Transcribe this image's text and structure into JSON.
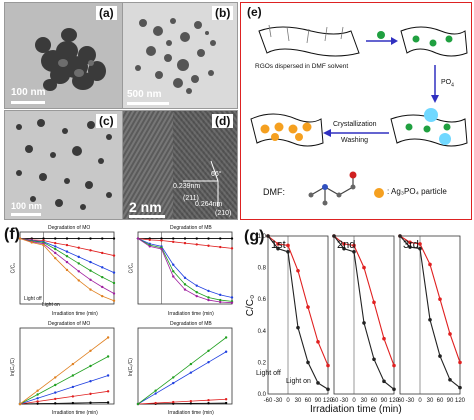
{
  "panels": {
    "a": {
      "label": "(a)",
      "scale": "100 nm"
    },
    "b": {
      "label": "(b)",
      "scale": "500 nm"
    },
    "c": {
      "label": "(c)",
      "scale": "100 nm"
    },
    "d": {
      "label": "(d)",
      "scale": "2 nm",
      "annotations": {
        "d1": "0.239nm",
        "angle": "66°",
        "d2": "0.264nm",
        "hkl1": "(211)",
        "hkl2": "(210)"
      }
    },
    "e": {
      "label": "(e)",
      "text_rgo": "RGOs dispersed in DMF solvent",
      "text_cryst": "Crystallization",
      "text_wash": "Washing",
      "text_dmf": "DMF:",
      "text_particle": ": Ag₃PO₄ particle",
      "po4": "PO",
      "po4_sup": "4"
    },
    "f": {
      "label": "(f)",
      "sub1": {
        "title": "Degradation of MO",
        "ylabel": "C/C₀",
        "xlabel": "Irradiation time (min)",
        "light_off": "Light off",
        "light_on": "Light on"
      },
      "sub2": {
        "title": "Degradation of MB",
        "ylabel": "C/C₀",
        "xlabel": "Irradiation time (min)"
      },
      "sub3": {
        "title": "Degradation of MO",
        "ylabel": "ln(C₀/C)",
        "xlabel": "Irradiation time (min)"
      },
      "sub4": {
        "title": "Degradation of MB",
        "ylabel": "ln(C₀/C)",
        "xlabel": "Irradiation time (min)"
      }
    },
    "g": {
      "label": "(g)",
      "ylabel": "C/C₀",
      "xlabel": "Irradiation time (min)",
      "light_off": "Light off",
      "light_on": "Light on"
    }
  },
  "chart_data": [
    {
      "type": "line",
      "panel": "g-1st",
      "title": "1st",
      "x": [
        -60,
        -30,
        0,
        30,
        60,
        90,
        120
      ],
      "xlim": [
        -60,
        120
      ],
      "ylim": [
        0,
        1
      ],
      "xticks": [
        "-60",
        "-30",
        "0",
        "30",
        "60",
        "90",
        "120"
      ],
      "yticks": [
        "0.0",
        "0.2",
        "0.4",
        "0.6",
        "0.8",
        "1.0"
      ],
      "series": [
        {
          "color": "#e02020",
          "values": [
            1.0,
            0.95,
            0.94,
            0.78,
            0.55,
            0.33,
            0.18
          ]
        },
        {
          "color": "#222222",
          "values": [
            1.0,
            0.92,
            0.9,
            0.42,
            0.2,
            0.07,
            0.03
          ]
        }
      ]
    },
    {
      "type": "line",
      "panel": "g-2nd",
      "title": "2nd",
      "x": [
        -60,
        -30,
        0,
        30,
        60,
        90,
        120
      ],
      "xlim": [
        -60,
        120
      ],
      "ylim": [
        0,
        1
      ],
      "xticks": [
        "-60",
        "-30",
        "0",
        "30",
        "60",
        "90",
        "120"
      ],
      "series": [
        {
          "color": "#e02020",
          "values": [
            1.0,
            0.95,
            0.94,
            0.8,
            0.58,
            0.35,
            0.18
          ]
        },
        {
          "color": "#222222",
          "values": [
            1.0,
            0.92,
            0.9,
            0.45,
            0.22,
            0.08,
            0.03
          ]
        }
      ]
    },
    {
      "type": "line",
      "panel": "g-3rd",
      "title": "3rd",
      "x": [
        -60,
        -30,
        0,
        30,
        60,
        90,
        120
      ],
      "xlim": [
        -60,
        120
      ],
      "ylim": [
        0,
        1
      ],
      "xticks": [
        "-60",
        "-30",
        "0",
        "30",
        "60",
        "90",
        "120"
      ],
      "series": [
        {
          "color": "#e02020",
          "values": [
            1.0,
            0.96,
            0.95,
            0.82,
            0.6,
            0.38,
            0.2
          ]
        },
        {
          "color": "#222222",
          "values": [
            1.0,
            0.93,
            0.92,
            0.47,
            0.24,
            0.09,
            0.04
          ]
        }
      ]
    },
    {
      "type": "line",
      "panel": "f-1",
      "x": [
        -60,
        -30,
        0,
        30,
        60,
        90,
        120,
        150,
        180
      ],
      "xlim": [
        -60,
        180
      ],
      "ylim": [
        0,
        1.1
      ],
      "series": [
        {
          "color": "#000000",
          "values": [
            1.0,
            1.0,
            1.0,
            1.0,
            1.0,
            1.0,
            1.0,
            1.0,
            1.0
          ]
        },
        {
          "color": "#e02020",
          "values": [
            1.0,
            0.98,
            0.97,
            0.93,
            0.9,
            0.86,
            0.82,
            0.78,
            0.74
          ]
        },
        {
          "color": "#2040e0",
          "values": [
            1.0,
            0.97,
            0.95,
            0.88,
            0.8,
            0.72,
            0.64,
            0.56,
            0.48
          ]
        },
        {
          "color": "#20a020",
          "values": [
            1.0,
            0.96,
            0.94,
            0.84,
            0.73,
            0.62,
            0.51,
            0.41,
            0.32
          ]
        },
        {
          "color": "#a020a0",
          "values": [
            1.0,
            0.95,
            0.92,
            0.78,
            0.64,
            0.5,
            0.37,
            0.26,
            0.16
          ]
        },
        {
          "color": "#e08020",
          "values": [
            1.0,
            0.94,
            0.9,
            0.7,
            0.52,
            0.36,
            0.22,
            0.12,
            0.05
          ]
        }
      ]
    },
    {
      "type": "line",
      "panel": "f-2",
      "x": [
        -60,
        -30,
        0,
        30,
        60,
        90,
        120,
        150,
        180
      ],
      "xlim": [
        -60,
        180
      ],
      "ylim": [
        0,
        1.1
      ],
      "series": [
        {
          "color": "#000000",
          "values": [
            1.0,
            1.0,
            1.0,
            1.0,
            1.0,
            1.0,
            1.0,
            1.0,
            1.0
          ]
        },
        {
          "color": "#e02020",
          "values": [
            1.0,
            0.98,
            0.97,
            0.95,
            0.93,
            0.91,
            0.89,
            0.87,
            0.85
          ]
        },
        {
          "color": "#2040e0",
          "values": [
            1.0,
            0.92,
            0.88,
            0.6,
            0.4,
            0.28,
            0.2,
            0.14,
            0.1
          ]
        },
        {
          "color": "#20a020",
          "values": [
            1.0,
            0.9,
            0.86,
            0.5,
            0.3,
            0.18,
            0.1,
            0.06,
            0.04
          ]
        },
        {
          "color": "#a020a0",
          "values": [
            1.0,
            0.88,
            0.84,
            0.42,
            0.22,
            0.12,
            0.06,
            0.03,
            0.02
          ]
        }
      ]
    },
    {
      "type": "scatter",
      "panel": "f-3",
      "x": [
        0,
        30,
        60,
        90,
        120,
        150
      ],
      "xlim": [
        0,
        160
      ],
      "ylim": [
        0,
        2.4
      ],
      "series": [
        {
          "color": "#000000",
          "values": [
            0,
            0.01,
            0.02,
            0.03,
            0.04,
            0.05
          ]
        },
        {
          "color": "#e02020",
          "values": [
            0,
            0.08,
            0.16,
            0.24,
            0.32,
            0.4
          ]
        },
        {
          "color": "#2040e0",
          "values": [
            0,
            0.18,
            0.36,
            0.54,
            0.72,
            0.9
          ]
        },
        {
          "color": "#20a020",
          "values": [
            0,
            0.3,
            0.6,
            0.9,
            1.2,
            1.5
          ]
        },
        {
          "color": "#e08020",
          "values": [
            0,
            0.42,
            0.84,
            1.26,
            1.68,
            2.1
          ]
        }
      ]
    },
    {
      "type": "scatter",
      "panel": "f-4",
      "x": [
        0,
        30,
        60,
        90,
        120,
        150
      ],
      "xlim": [
        0,
        160
      ],
      "ylim": [
        0,
        4
      ],
      "series": [
        {
          "color": "#000000",
          "values": [
            0,
            0.01,
            0.02,
            0.03,
            0.04,
            0.05
          ]
        },
        {
          "color": "#e02020",
          "values": [
            0,
            0.05,
            0.1,
            0.15,
            0.2,
            0.25
          ]
        },
        {
          "color": "#2040e0",
          "values": [
            0,
            0.55,
            1.1,
            1.65,
            2.2,
            2.75
          ]
        },
        {
          "color": "#20a020",
          "values": [
            0,
            0.7,
            1.4,
            2.1,
            2.8,
            3.5
          ]
        }
      ]
    }
  ]
}
